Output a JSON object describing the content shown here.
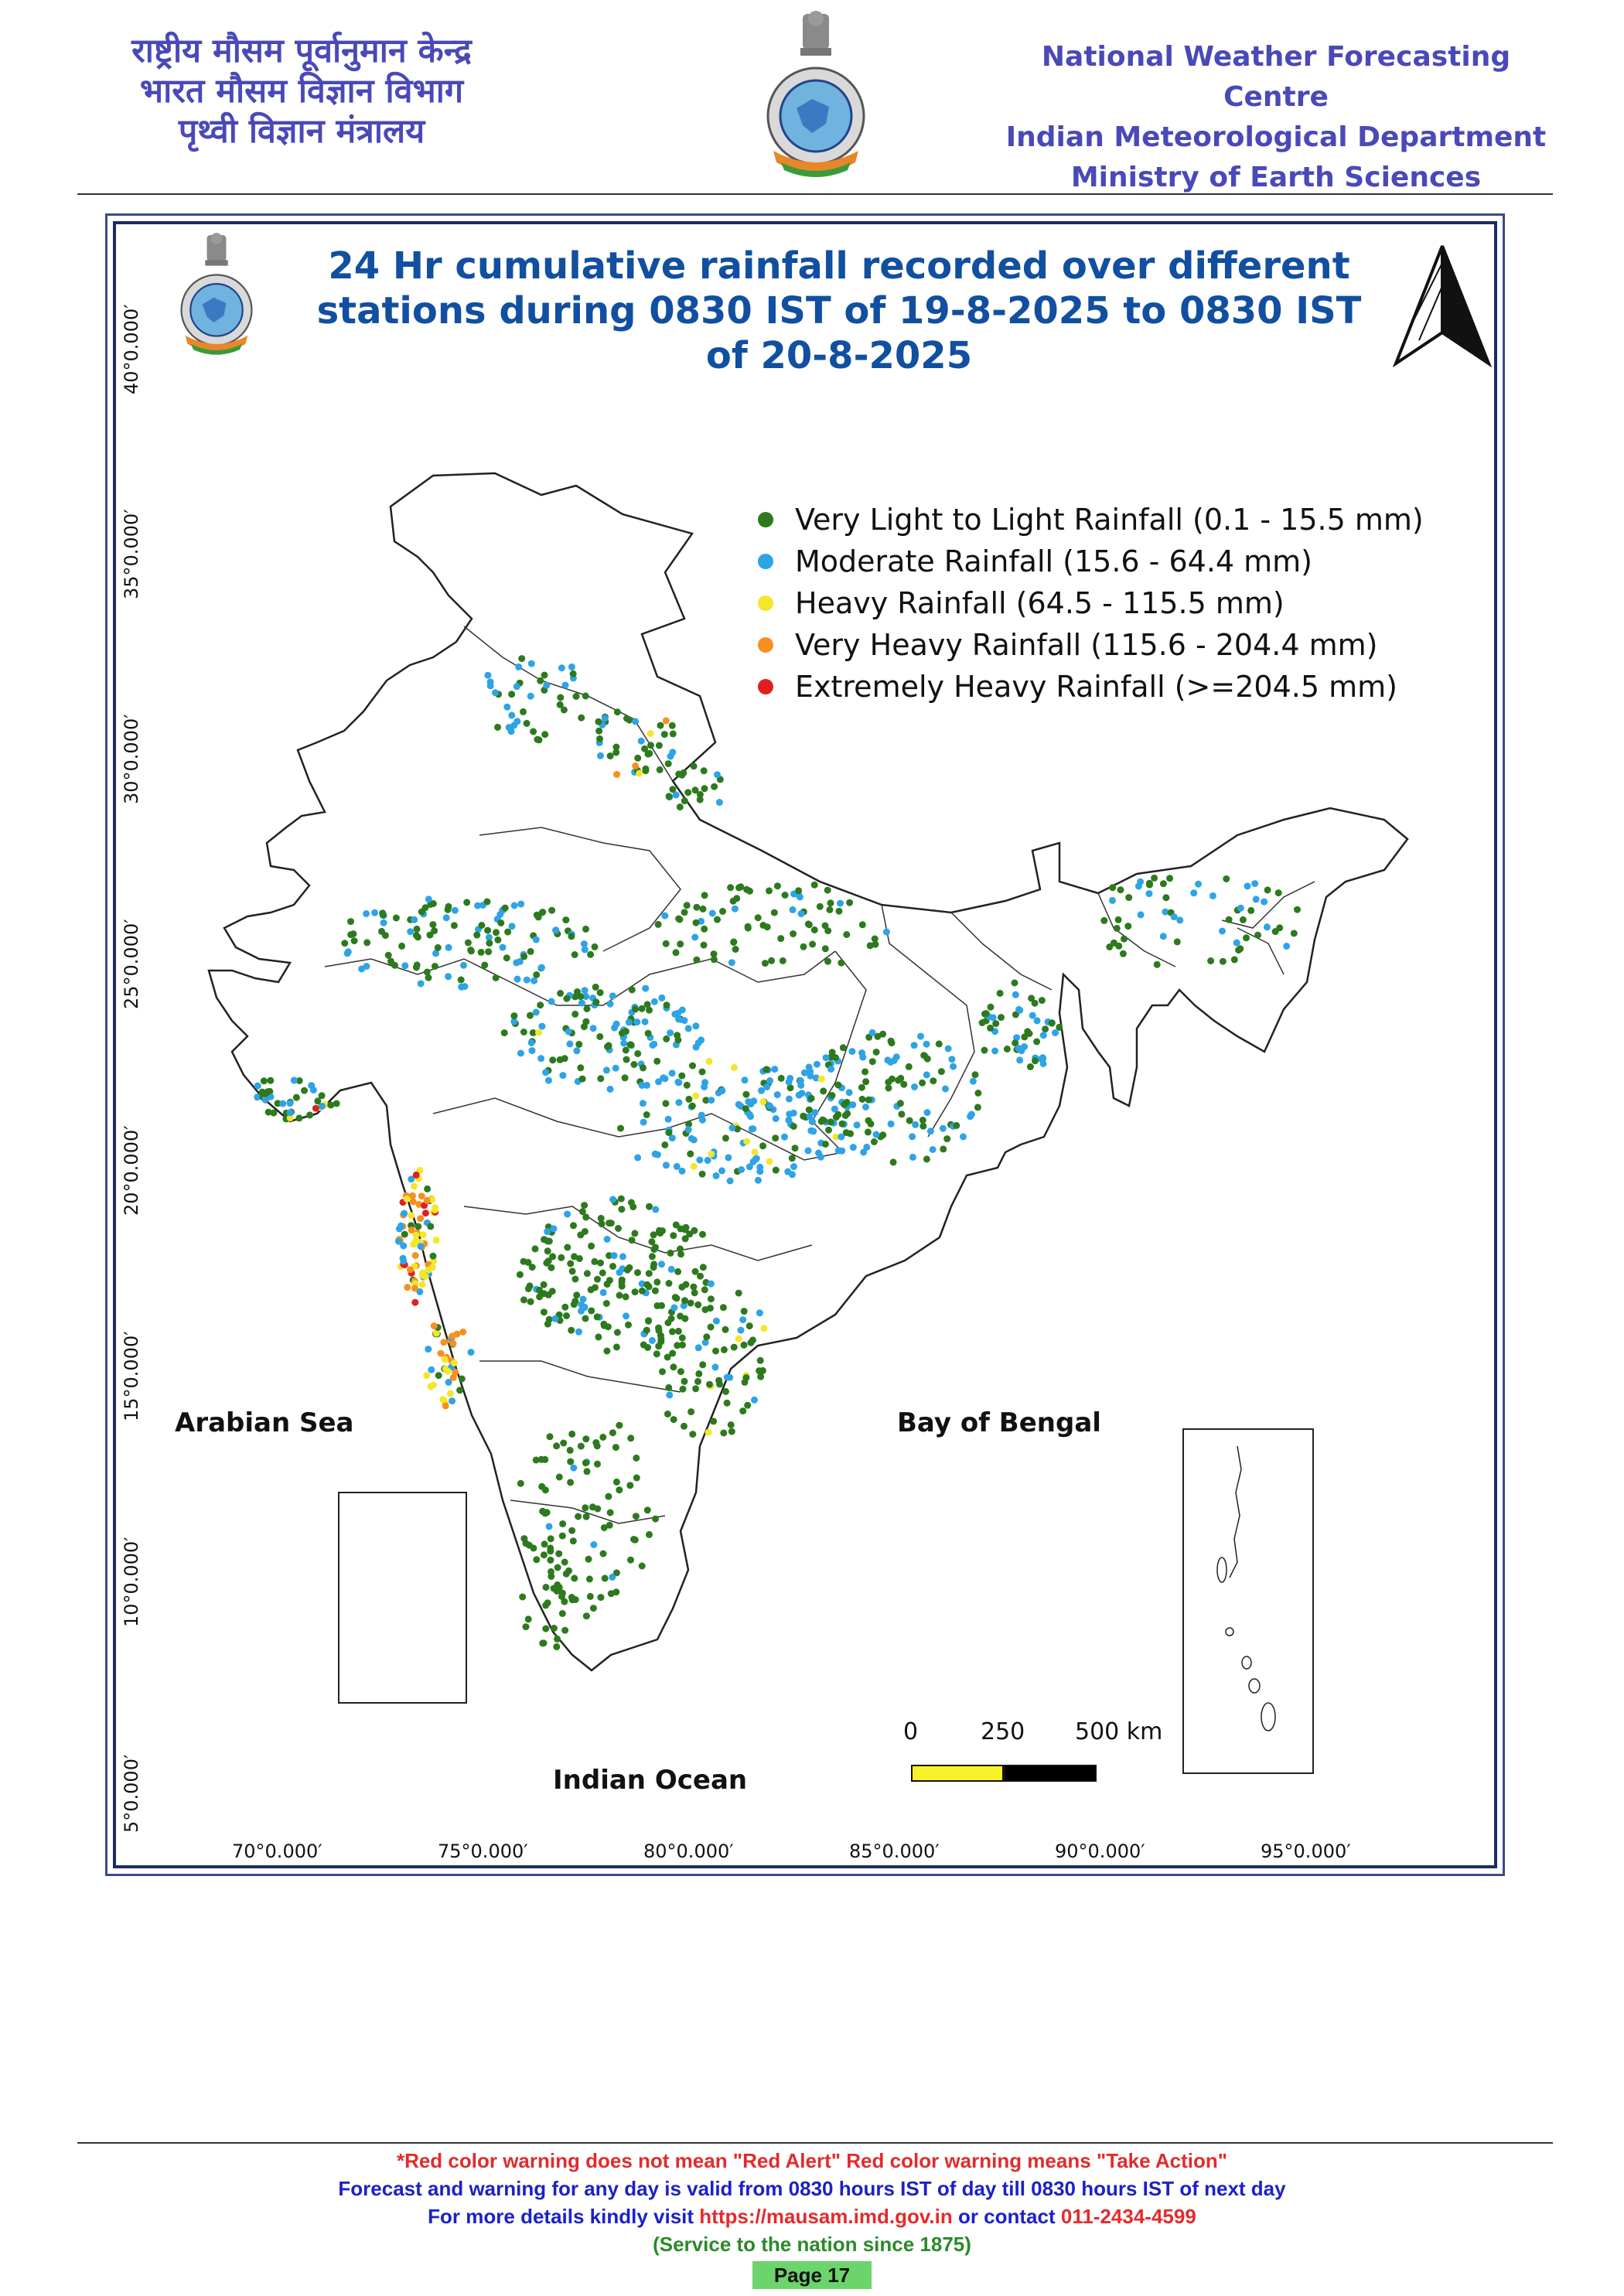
{
  "header": {
    "hindi_lines": [
      "राष्ट्रीय मौसम पूर्वानुमान केन्द्र",
      "भारत मौसम विज्ञान विभाग",
      "पृथ्वी विज्ञान मंत्रालय"
    ],
    "english_lines": [
      "National Weather Forecasting Centre",
      "Indian Meteorological Department",
      "Ministry of Earth Sciences"
    ],
    "logo_icon": "imd-emblem-icon"
  },
  "map": {
    "title_lines": [
      "24 Hr cumulative rainfall recorded over different",
      "stations during 0830 IST of 19-8-2025 to 0830 IST",
      "of 20-8-2025"
    ],
    "north_arrow_icon": "north-arrow-icon",
    "legend": [
      {
        "label": "Very Light to Light Rainfall (0.1 - 15.5 mm)",
        "color": "#2d7a1e"
      },
      {
        "label": "Moderate Rainfall (15.6 - 64.4 mm)",
        "color": "#2ea3e6"
      },
      {
        "label": "Heavy Rainfall (64.5 - 115.5 mm)",
        "color": "#f4e62a"
      },
      {
        "label": "Very Heavy Rainfall (115.6 - 204.4 mm)",
        "color": "#f7901e"
      },
      {
        "label": "Extremely Heavy Rainfall (>=204.5 mm)",
        "color": "#e02020"
      }
    ],
    "sea_labels": {
      "arabian": "Arabian Sea",
      "bengal": "Bay of Bengal",
      "indian": "Indian Ocean"
    },
    "lat_labels": [
      "40°0.000′",
      "35°0.000′",
      "30°0.000′",
      "25°0.000′",
      "20°0.000′",
      "15°0.000′",
      "10°0.000′",
      "5°0.000′"
    ],
    "lon_labels": [
      "70°0.000′",
      "75°0.000′",
      "80°0.000′",
      "85°0.000′",
      "90°0.000′",
      "95°0.000′"
    ],
    "scale_bar": {
      "labels": [
        "0",
        "250",
        "500 km"
      ],
      "colors": [
        "#f8f22a",
        "#000000"
      ]
    }
  },
  "footer": {
    "line1": "*Red color warning does not mean \"Red Alert\" Red color warning means \"Take Action\"",
    "line2": "Forecast and warning for any day is valid from 0830 hours IST of day till 0830 hours IST of next day",
    "line3_prefix": "For more details kindly visit ",
    "line3_url": "https://mausam.imd.gov.in",
    "line3_mid": " or contact ",
    "line3_phone": "011-2434-4599",
    "line4": "(Service to the nation since 1875)",
    "page": "Page 17"
  }
}
